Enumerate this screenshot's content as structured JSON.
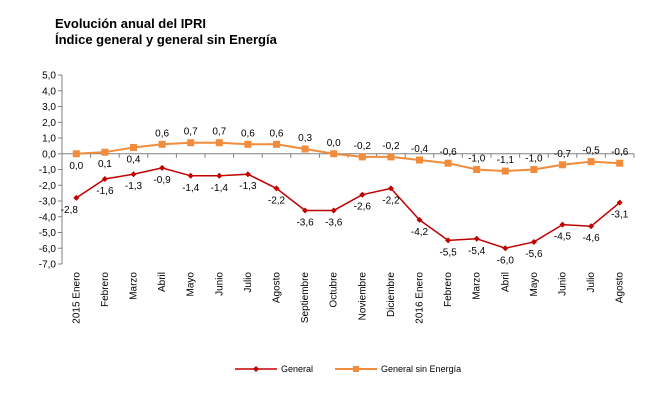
{
  "title_lines": [
    "Evolución anual del IPRI",
    "Índice general y general sin Energía"
  ],
  "chart_data": {
    "type": "line",
    "title": "Evolución anual del IPRI",
    "subtitle": "Índice general y general sin Energía",
    "categories": [
      "2015 Enero",
      "Febrero",
      "Marzo",
      "Abril",
      "Mayo",
      "Junio",
      "Julio",
      "Agosto",
      "Septiembre",
      "Octubre",
      "Noviembre",
      "Diciembre",
      "2016 Enero",
      "Febrero",
      "Marzo",
      "Abril",
      "Mayo",
      "Junio",
      "Julio",
      "Agosto"
    ],
    "series": [
      {
        "name": "General",
        "color": "#c00000",
        "marker": "diamond",
        "values": [
          -2.8,
          -1.6,
          -1.3,
          -0.9,
          -1.4,
          -1.4,
          -1.3,
          -2.2,
          -3.6,
          -3.6,
          -2.6,
          -2.2,
          -4.2,
          -5.5,
          -5.4,
          -6.0,
          -5.6,
          -4.5,
          -4.6,
          -3.1
        ],
        "labels": [
          "-2,8",
          "-1,6",
          "-1,3",
          "-0,9",
          "-1,4",
          "-1,4",
          "-1,3",
          "-2,2",
          "-3,6",
          "-3,6",
          "-2,6",
          "-2,2",
          "-4,2",
          "-5,5",
          "-5,4",
          "-6,0",
          "-5,6",
          "-4,5",
          "-4,6",
          "-3,1"
        ]
      },
      {
        "name": "General sin Energía",
        "color": "#f08c3c",
        "marker": "square",
        "values": [
          0.0,
          0.1,
          0.4,
          0.6,
          0.7,
          0.7,
          0.6,
          0.6,
          0.3,
          0.0,
          -0.2,
          -0.2,
          -0.4,
          -0.6,
          -1.0,
          -1.1,
          -1.0,
          -0.7,
          -0.5,
          -0.6
        ],
        "labels": [
          "0,0",
          "0,1",
          "0,4",
          "0,6",
          "0,7",
          "0,7",
          "0,6",
          "0,6",
          "0,3",
          "0,0",
          "-0,2",
          "-0,2",
          "-0,4",
          "-0,6",
          "-1,0",
          "-1,1",
          "-1,0",
          "-0,7",
          "-0,5",
          "-0,6"
        ]
      }
    ],
    "yticks": [
      "5,0",
      "4,0",
      "3,0",
      "2,0",
      "1,0",
      "0,0",
      "-1,0",
      "-2,0",
      "-3,0",
      "-4,0",
      "-5,0",
      "-6,0",
      "-7,0"
    ],
    "ylim": [
      -7,
      5
    ],
    "grid": false,
    "legend_position": "bottom"
  }
}
